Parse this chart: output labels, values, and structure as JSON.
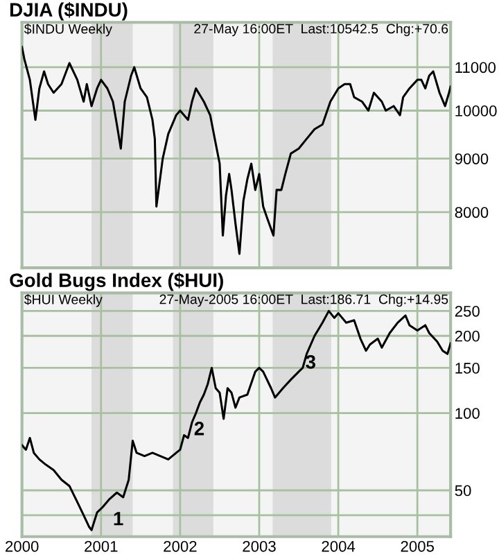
{
  "chart_data": [
    {
      "type": "line",
      "title": "DJIA ($INDU)",
      "subtitle": "$INDU Weekly",
      "annotations": [
        "27-May 16:00ET  Last:10542.5  Chg:+70.6"
      ],
      "x": [
        2000.0,
        2000.03,
        2000.1,
        2000.17,
        2000.22,
        2000.28,
        2000.33,
        2000.4,
        2000.5,
        2000.6,
        2000.7,
        2000.78,
        2000.82,
        2000.88,
        2000.95,
        2001.0,
        2001.08,
        2001.15,
        2001.2,
        2001.25,
        2001.3,
        2001.38,
        2001.42,
        2001.5,
        2001.58,
        2001.65,
        2001.68,
        2001.7,
        2001.78,
        2001.85,
        2001.95,
        2002.0,
        2002.1,
        2002.15,
        2002.2,
        2002.3,
        2002.38,
        2002.45,
        2002.5,
        2002.54,
        2002.58,
        2002.62,
        2002.65,
        2002.7,
        2002.75,
        2002.8,
        2002.85,
        2002.9,
        2002.95,
        2003.0,
        2003.05,
        2003.1,
        2003.18,
        2003.22,
        2003.28,
        2003.33,
        2003.4,
        2003.5,
        2003.6,
        2003.7,
        2003.8,
        2003.9,
        2004.0,
        2004.08,
        2004.15,
        2004.2,
        2004.3,
        2004.38,
        2004.45,
        2004.55,
        2004.6,
        2004.7,
        2004.78,
        2004.82,
        2004.9,
        2005.0,
        2005.05,
        2005.1,
        2005.15,
        2005.2,
        2005.28,
        2005.35,
        2005.4,
        2005.42
      ],
      "series": [
        {
          "color": "#000000",
          "values": [
            11500,
            11200,
            10700,
            9800,
            10500,
            10900,
            10600,
            10400,
            10600,
            11100,
            10700,
            10200,
            10600,
            10100,
            10500,
            10700,
            10500,
            10200,
            9700,
            9200,
            10200,
            10800,
            11000,
            10500,
            10300,
            9800,
            9400,
            8100,
            9000,
            9500,
            9900,
            10000,
            9800,
            10200,
            10500,
            10200,
            9900,
            9300,
            8900,
            7600,
            8300,
            8700,
            8400,
            7800,
            7300,
            8200,
            8600,
            8900,
            8400,
            8700,
            8100,
            7900,
            7600,
            8400,
            8400,
            8700,
            9100,
            9200,
            9400,
            9600,
            9700,
            10200,
            10500,
            10600,
            10600,
            10300,
            10200,
            10000,
            10400,
            10200,
            10000,
            10100,
            9900,
            10300,
            10500,
            10700,
            10700,
            10500,
            10800,
            10900,
            10400,
            10100,
            10400,
            10540
          ]
        }
      ],
      "log": "y",
      "xlim": [
        2000,
        2005.42
      ],
      "xticks": [
        2000,
        2001,
        2002,
        2003,
        2004,
        2005
      ],
      "ylim": [
        7080,
        12140
      ],
      "yticks": [
        8000,
        9000,
        10000,
        11000
      ],
      "grid": true,
      "tick_labels": "y",
      "bands": [
        {
          "axis": "x",
          "from": 2000.88,
          "to": 2001.4,
          "color": "#dcdcdc"
        },
        {
          "axis": "x",
          "from": 2001.91,
          "to": 2002.42,
          "color": "#dcdcdc"
        },
        {
          "axis": "x",
          "from": 2003.17,
          "to": 2003.91,
          "color": "#dcdcdc"
        }
      ]
    },
    {
      "type": "line",
      "title": "Gold Bugs Index ($HUI)",
      "subtitle": "$HUI Weekly",
      "annotations": [
        "27-May-2005 16:00ET  Last:186.71  Chg:+14.95",
        "1",
        "2",
        "3"
      ],
      "x": [
        2000.0,
        2000.05,
        2000.1,
        2000.15,
        2000.22,
        2000.3,
        2000.4,
        2000.5,
        2000.6,
        2000.7,
        2000.78,
        2000.85,
        2000.88,
        2000.95,
        2001.02,
        2001.1,
        2001.2,
        2001.28,
        2001.35,
        2001.4,
        2001.45,
        2001.55,
        2001.65,
        2001.75,
        2001.85,
        2001.9,
        2002.0,
        2002.05,
        2002.1,
        2002.15,
        2002.2,
        2002.25,
        2002.3,
        2002.35,
        2002.4,
        2002.45,
        2002.5,
        2002.55,
        2002.6,
        2002.65,
        2002.7,
        2002.75,
        2002.85,
        2002.95,
        2003.0,
        2003.05,
        2003.15,
        2003.2,
        2003.3,
        2003.4,
        2003.5,
        2003.55,
        2003.6,
        2003.7,
        2003.8,
        2003.88,
        2003.95,
        2004.0,
        2004.1,
        2004.2,
        2004.28,
        2004.35,
        2004.4,
        2004.5,
        2004.55,
        2004.65,
        2004.75,
        2004.85,
        2004.9,
        2005.0,
        2005.1,
        2005.15,
        2005.25,
        2005.32,
        2005.38,
        2005.42
      ],
      "series": [
        {
          "color": "#000000",
          "values": [
            75,
            72,
            80,
            70,
            66,
            63,
            60,
            55,
            52,
            45,
            40,
            36,
            35,
            41,
            43,
            46,
            49,
            47,
            55,
            78,
            70,
            68,
            70,
            68,
            66,
            68,
            72,
            82,
            80,
            92,
            100,
            110,
            118,
            130,
            150,
            125,
            120,
            95,
            125,
            120,
            105,
            115,
            118,
            145,
            150,
            145,
            125,
            115,
            125,
            135,
            145,
            150,
            170,
            200,
            225,
            250,
            235,
            245,
            225,
            230,
            195,
            175,
            185,
            195,
            180,
            205,
            225,
            240,
            220,
            210,
            220,
            205,
            190,
            175,
            170,
            187
          ]
        }
      ],
      "log": "y",
      "xlim": [
        2000,
        2005.42
      ],
      "xticks": [
        2000,
        2001,
        2002,
        2003,
        2004,
        2005
      ],
      "ylim": [
        33,
        294
      ],
      "yticks": [
        {
          "value": 40,
          "label": null
        },
        50,
        100,
        150,
        200,
        250
      ],
      "grid": true,
      "bands": [
        {
          "axis": "x",
          "from": 2000.88,
          "to": 2001.4,
          "color": "#dcdcdc"
        },
        {
          "axis": "x",
          "from": 2001.91,
          "to": 2002.42,
          "color": "#dcdcdc"
        },
        {
          "axis": "x",
          "from": 2003.17,
          "to": 2003.91,
          "color": "#dcdcdc"
        }
      ]
    }
  ]
}
